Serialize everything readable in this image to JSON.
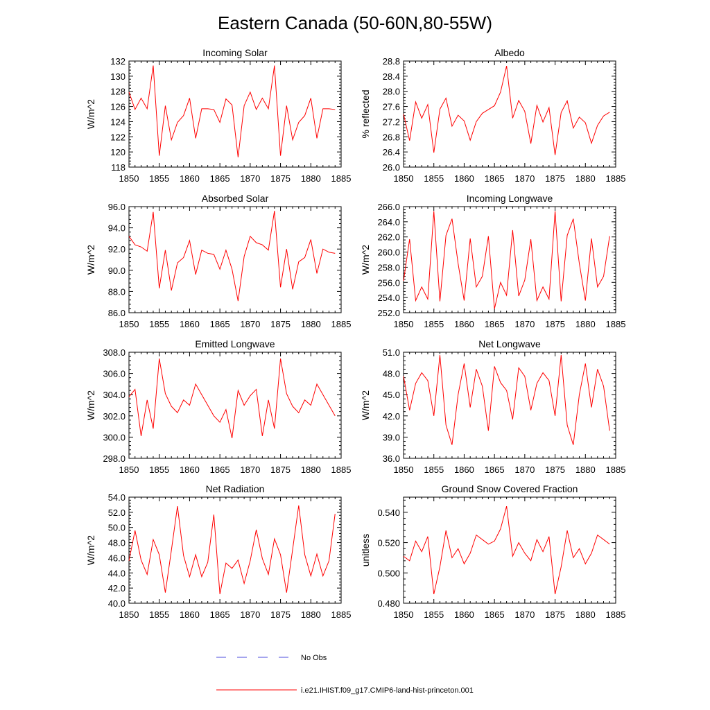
{
  "figure": {
    "title": "Eastern Canada (50-60N,80-55W)"
  },
  "legend": {
    "items": [
      {
        "label": "No Obs",
        "color": "#4b4bdc",
        "style": "dashed"
      },
      {
        "label": "i.e21.IHIST.f09_g17.CMIP6-land-hist-princeton.001",
        "color": "#ff0000",
        "style": "solid"
      }
    ]
  },
  "chart_data": [
    {
      "type": "line",
      "title": "Incoming Solar",
      "ylabel": "W/m^2",
      "xlim": [
        1850,
        1885
      ],
      "ylim": [
        118,
        132
      ],
      "xticks": [
        1850,
        1855,
        1860,
        1865,
        1870,
        1875,
        1880,
        1885
      ],
      "yticks": [
        118,
        120,
        122,
        124,
        126,
        128,
        130,
        132
      ],
      "ytick_labels": [
        "118",
        "120",
        "122",
        "124",
        "126",
        "128",
        "130",
        "132"
      ],
      "x": [
        1850,
        1851,
        1852,
        1853,
        1854,
        1855,
        1856,
        1857,
        1858,
        1859,
        1860,
        1861,
        1862,
        1863,
        1864,
        1865,
        1866,
        1867,
        1868,
        1869,
        1870,
        1871,
        1872,
        1873,
        1874,
        1875,
        1876,
        1877,
        1878,
        1879,
        1880,
        1881,
        1882,
        1883,
        1884
      ],
      "series": [
        {
          "values": [
            127.9,
            125.6,
            127.1,
            125.7,
            131.4,
            119.5,
            126.1,
            121.6,
            123.9,
            124.8,
            127.1,
            121.8,
            125.7,
            125.7,
            125.6,
            123.9,
            127.0,
            126.2,
            119.3,
            126.1,
            127.9,
            125.6,
            127.1,
            125.7,
            131.4,
            119.5,
            126.1,
            121.6,
            123.9,
            124.8,
            127.1,
            121.8,
            125.7,
            125.7,
            125.6
          ],
          "color": "#ff0000"
        }
      ]
    },
    {
      "type": "line",
      "title": "Albedo",
      "ylabel": "% reflected",
      "xlim": [
        1850,
        1885
      ],
      "ylim": [
        26.0,
        28.8
      ],
      "xticks": [
        1850,
        1855,
        1860,
        1865,
        1870,
        1875,
        1880,
        1885
      ],
      "yticks": [
        26.0,
        26.4,
        26.8,
        27.2,
        27.6,
        28.0,
        28.4,
        28.8
      ],
      "ytick_labels": [
        "26.0",
        "26.4",
        "26.8",
        "27.2",
        "27.6",
        "28.0",
        "28.4",
        "28.8"
      ],
      "x": [
        1850,
        1851,
        1852,
        1853,
        1854,
        1855,
        1856,
        1857,
        1858,
        1859,
        1860,
        1861,
        1862,
        1863,
        1864,
        1865,
        1866,
        1867,
        1868,
        1869,
        1870,
        1871,
        1872,
        1873,
        1874,
        1875,
        1876,
        1877,
        1878,
        1879,
        1880,
        1881,
        1882,
        1883,
        1884
      ],
      "series": [
        {
          "values": [
            27.4,
            26.7,
            27.72,
            27.29,
            27.65,
            26.38,
            27.53,
            27.82,
            27.08,
            27.37,
            27.22,
            26.71,
            27.2,
            27.42,
            27.52,
            27.62,
            27.98,
            28.67,
            27.29,
            27.76,
            27.47,
            26.62,
            27.63,
            27.19,
            27.57,
            26.32,
            27.44,
            27.75,
            27.03,
            27.32,
            27.17,
            26.63,
            27.1,
            27.35,
            27.45
          ],
          "color": "#ff0000"
        }
      ]
    },
    {
      "type": "line",
      "title": "Absorbed Solar",
      "ylabel": "W/m^2",
      "xlim": [
        1850,
        1885
      ],
      "ylim": [
        86.0,
        96.0
      ],
      "xticks": [
        1850,
        1855,
        1860,
        1865,
        1870,
        1875,
        1880,
        1885
      ],
      "yticks": [
        86.0,
        88.0,
        90.0,
        92.0,
        94.0,
        96.0
      ],
      "ytick_labels": [
        "86.0",
        "88.0",
        "90.0",
        "92.0",
        "94.0",
        "96.0"
      ],
      "x": [
        1850,
        1851,
        1852,
        1853,
        1854,
        1855,
        1856,
        1857,
        1858,
        1859,
        1860,
        1861,
        1862,
        1863,
        1864,
        1865,
        1866,
        1867,
        1868,
        1869,
        1870,
        1871,
        1872,
        1873,
        1874,
        1875,
        1876,
        1877,
        1878,
        1879,
        1880,
        1881,
        1882,
        1883,
        1884
      ],
      "series": [
        {
          "values": [
            93.2,
            92.4,
            92.2,
            91.8,
            95.5,
            88.3,
            91.9,
            88.1,
            90.7,
            91.2,
            92.8,
            89.6,
            91.9,
            91.6,
            91.5,
            90.1,
            91.9,
            90.1,
            87.1,
            91.3,
            93.2,
            92.6,
            92.4,
            91.9,
            95.6,
            88.4,
            92.0,
            88.2,
            90.8,
            91.2,
            92.9,
            89.7,
            92.0,
            91.7,
            91.6
          ],
          "color": "#ff0000"
        }
      ]
    },
    {
      "type": "line",
      "title": "Incoming Longwave",
      "ylabel": "W/m^2",
      "xlim": [
        1850,
        1885
      ],
      "ylim": [
        252.0,
        266.0
      ],
      "xticks": [
        1850,
        1855,
        1860,
        1865,
        1870,
        1875,
        1880,
        1885
      ],
      "yticks": [
        252.0,
        254.0,
        256.0,
        258.0,
        260.0,
        262.0,
        264.0,
        266.0
      ],
      "ytick_labels": [
        "252.0",
        "254.0",
        "256.0",
        "258.0",
        "260.0",
        "262.0",
        "264.0",
        "266.0"
      ],
      "x": [
        1850,
        1851,
        1852,
        1853,
        1854,
        1855,
        1856,
        1857,
        1858,
        1859,
        1860,
        1861,
        1862,
        1863,
        1864,
        1865,
        1866,
        1867,
        1868,
        1869,
        1870,
        1871,
        1872,
        1873,
        1874,
        1875,
        1876,
        1877,
        1878,
        1879,
        1880,
        1881,
        1882,
        1883,
        1884
      ],
      "series": [
        {
          "values": [
            256.2,
            261.7,
            253.6,
            255.4,
            253.8,
            265.4,
            253.5,
            262.2,
            264.4,
            258.5,
            253.6,
            261.8,
            255.4,
            256.8,
            262.1,
            252.5,
            256.0,
            254.3,
            262.9,
            254.2,
            256.3,
            261.7,
            253.6,
            255.4,
            253.8,
            265.4,
            253.5,
            262.2,
            264.4,
            258.5,
            253.6,
            261.8,
            255.4,
            256.8,
            262.1
          ],
          "color": "#ff0000"
        }
      ]
    },
    {
      "type": "line",
      "title": "Emitted Longwave",
      "ylabel": "W/m^2",
      "xlim": [
        1850,
        1885
      ],
      "ylim": [
        298.0,
        308.0
      ],
      "xticks": [
        1850,
        1855,
        1860,
        1865,
        1870,
        1875,
        1880,
        1885
      ],
      "yticks": [
        298.0,
        300.0,
        302.0,
        304.0,
        306.0,
        308.0
      ],
      "ytick_labels": [
        "298.0",
        "300.0",
        "302.0",
        "304.0",
        "306.0",
        "308.0"
      ],
      "x": [
        1850,
        1851,
        1852,
        1853,
        1854,
        1855,
        1856,
        1857,
        1858,
        1859,
        1860,
        1861,
        1862,
        1863,
        1864,
        1865,
        1866,
        1867,
        1868,
        1869,
        1870,
        1871,
        1872,
        1873,
        1874,
        1875,
        1876,
        1877,
        1878,
        1879,
        1880,
        1881,
        1882,
        1883,
        1884
      ],
      "series": [
        {
          "values": [
            303.8,
            304.5,
            300.1,
            303.5,
            300.8,
            307.4,
            304.1,
            302.9,
            302.3,
            303.5,
            303.0,
            305.0,
            304.0,
            303.0,
            302.0,
            301.4,
            302.6,
            299.9,
            304.4,
            303.0,
            303.9,
            304.5,
            300.1,
            303.5,
            300.8,
            307.4,
            304.1,
            302.9,
            302.3,
            303.5,
            303.0,
            305.0,
            304.0,
            303.0,
            302.0
          ],
          "color": "#ff0000"
        }
      ]
    },
    {
      "type": "line",
      "title": "Net Longwave",
      "ylabel": "W/m^2",
      "xlim": [
        1850,
        1885
      ],
      "ylim": [
        36.0,
        51.0
      ],
      "xticks": [
        1850,
        1855,
        1860,
        1865,
        1870,
        1875,
        1880,
        1885
      ],
      "yticks": [
        36.0,
        39.0,
        42.0,
        45.0,
        48.0,
        51.0
      ],
      "ytick_labels": [
        "36.0",
        "39.0",
        "42.0",
        "45.0",
        "48.0",
        "51.0"
      ],
      "x": [
        1850,
        1851,
        1852,
        1853,
        1854,
        1855,
        1856,
        1857,
        1858,
        1859,
        1860,
        1861,
        1862,
        1863,
        1864,
        1865,
        1866,
        1867,
        1868,
        1869,
        1870,
        1871,
        1872,
        1873,
        1874,
        1875,
        1876,
        1877,
        1878,
        1879,
        1880,
        1881,
        1882,
        1883,
        1884
      ],
      "series": [
        {
          "values": [
            47.6,
            42.8,
            46.6,
            48.1,
            47.0,
            42.0,
            50.6,
            40.7,
            37.9,
            45.0,
            49.4,
            43.2,
            48.6,
            46.2,
            39.9,
            49.0,
            46.7,
            45.6,
            41.5,
            48.8,
            47.6,
            42.8,
            46.6,
            48.1,
            47.0,
            42.0,
            50.6,
            40.7,
            37.9,
            45.0,
            49.4,
            43.2,
            48.6,
            46.2,
            39.9
          ],
          "color": "#ff0000"
        }
      ]
    },
    {
      "type": "line",
      "title": "Net Radiation",
      "ylabel": "W/m^2",
      "xlim": [
        1850,
        1885
      ],
      "ylim": [
        40.0,
        54.0
      ],
      "xticks": [
        1850,
        1855,
        1860,
        1865,
        1870,
        1875,
        1880,
        1885
      ],
      "yticks": [
        40.0,
        42.0,
        44.0,
        46.0,
        48.0,
        50.0,
        52.0,
        54.0
      ],
      "ytick_labels": [
        "40.0",
        "42.0",
        "44.0",
        "46.0",
        "48.0",
        "50.0",
        "52.0",
        "54.0"
      ],
      "x": [
        1850,
        1851,
        1852,
        1853,
        1854,
        1855,
        1856,
        1857,
        1858,
        1859,
        1860,
        1861,
        1862,
        1863,
        1864,
        1865,
        1866,
        1867,
        1868,
        1869,
        1870,
        1871,
        1872,
        1873,
        1874,
        1875,
        1876,
        1877,
        1878,
        1879,
        1880,
        1881,
        1882,
        1883,
        1884
      ],
      "series": [
        {
          "values": [
            45.6,
            49.6,
            45.7,
            43.8,
            48.4,
            46.4,
            41.4,
            47.0,
            52.8,
            46.3,
            43.5,
            46.4,
            43.5,
            45.4,
            51.7,
            41.2,
            45.3,
            44.6,
            45.7,
            42.6,
            45.6,
            49.7,
            45.9,
            43.8,
            48.5,
            46.4,
            41.4,
            47.1,
            52.9,
            46.4,
            43.6,
            46.5,
            43.6,
            45.6,
            51.8
          ],
          "color": "#ff0000"
        }
      ]
    },
    {
      "type": "line",
      "title": "Ground Snow Covered Fraction",
      "ylabel": "unitless",
      "xlim": [
        1850,
        1885
      ],
      "ylim": [
        0.48,
        0.55
      ],
      "xticks": [
        1850,
        1855,
        1860,
        1865,
        1870,
        1875,
        1880,
        1885
      ],
      "yticks": [
        0.48,
        0.5,
        0.52,
        0.54
      ],
      "ytick_labels": [
        "0.480",
        "0.500",
        "0.520",
        "0.540"
      ],
      "x": [
        1850,
        1851,
        1852,
        1853,
        1854,
        1855,
        1856,
        1857,
        1858,
        1859,
        1860,
        1861,
        1862,
        1863,
        1864,
        1865,
        1866,
        1867,
        1868,
        1869,
        1870,
        1871,
        1872,
        1873,
        1874,
        1875,
        1876,
        1877,
        1878,
        1879,
        1880,
        1881,
        1882,
        1883,
        1884
      ],
      "series": [
        {
          "values": [
            0.511,
            0.508,
            0.521,
            0.514,
            0.524,
            0.486,
            0.504,
            0.528,
            0.51,
            0.516,
            0.506,
            0.513,
            0.525,
            0.522,
            0.519,
            0.521,
            0.529,
            0.544,
            0.511,
            0.52,
            0.513,
            0.508,
            0.522,
            0.514,
            0.524,
            0.486,
            0.504,
            0.528,
            0.51,
            0.516,
            0.506,
            0.513,
            0.525,
            0.522,
            0.519
          ],
          "color": "#ff0000"
        }
      ]
    }
  ]
}
